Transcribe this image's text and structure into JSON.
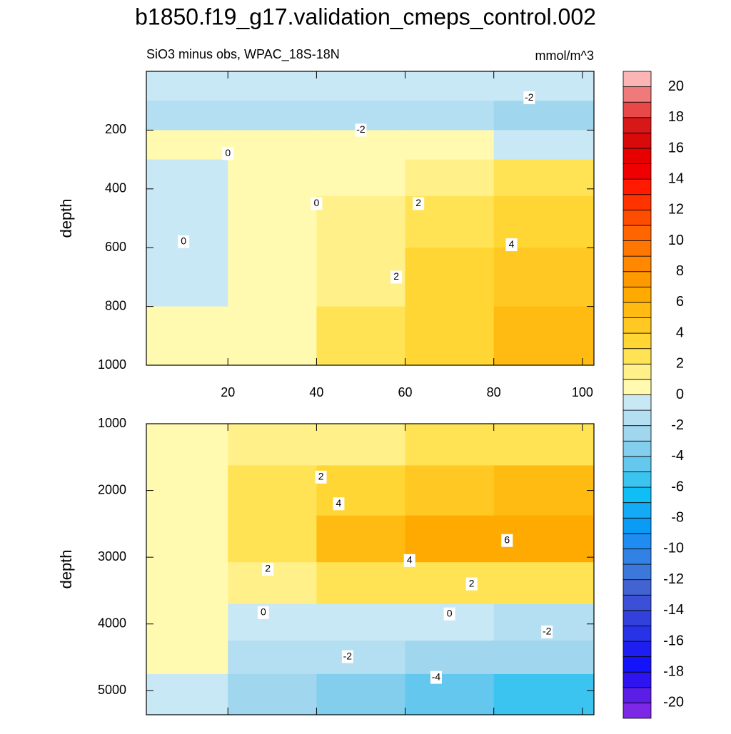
{
  "title": "b1850.f19_g17.validation_cmeps_control.002",
  "subtitle": "SiO3 minus obs, WPAC_18S-18N",
  "units": "mmol/m^3",
  "colorbar": {
    "levels": [
      -21,
      -20,
      -19,
      -18,
      -17,
      -16,
      -15,
      -14,
      -13,
      -12,
      -11,
      -10,
      -9,
      -8,
      -7,
      -6,
      -5,
      -4,
      -3,
      -2,
      -1,
      0,
      1,
      2,
      3,
      4,
      5,
      6,
      7,
      8,
      9,
      10,
      11,
      12,
      13,
      14,
      15,
      16,
      17,
      18,
      19,
      20,
      21
    ],
    "colors": [
      "#7d28e6",
      "#5a1ee6",
      "#2d14f0",
      "#1414fa",
      "#1e1ef0",
      "#2832e6",
      "#3241dc",
      "#3c50d7",
      "#4164d2",
      "#3c78dc",
      "#3282e6",
      "#1e8cf0",
      "#0a9bf5",
      "#14aaf5",
      "#0fbef5",
      "#3cc4f0",
      "#64c8ee",
      "#82ceec",
      "#a0d6ee",
      "#b4def2",
      "#c8e8f6",
      "#fffab0",
      "#fff08a",
      "#ffe355",
      "#ffd633",
      "#ffc822",
      "#ffbb11",
      "#ffaa00",
      "#ff9900",
      "#ff8800",
      "#ff7700",
      "#ff6600",
      "#ff4d00",
      "#ff3300",
      "#ff1a00",
      "#f00000",
      "#e60000",
      "#d80a0a",
      "#d81818",
      "#e84848",
      "#f07a7a",
      "#fbb5b5"
    ],
    "ticks": [
      -20,
      -18,
      -16,
      -14,
      -12,
      -10,
      -8,
      -6,
      -4,
      -2,
      0,
      2,
      4,
      6,
      8,
      10,
      12,
      14,
      16,
      18,
      20
    ]
  },
  "chart_data": [
    {
      "type": "contour",
      "ylabel": "depth",
      "xlim": [
        1.6,
        102.6
      ],
      "ylim": [
        0,
        1000
      ],
      "xticks": [
        20,
        40,
        60,
        80,
        100
      ],
      "xtick_labels": true,
      "yticks": [
        200,
        400,
        600,
        800,
        1000
      ],
      "x": [
        10,
        30,
        50,
        70,
        90
      ],
      "y": [
        50,
        150,
        250,
        350,
        500,
        700,
        900
      ],
      "z": [
        [
          -1,
          -1,
          -1,
          -1,
          -1
        ],
        [
          -2,
          -2,
          -2,
          -2,
          -3
        ],
        [
          0,
          0.5,
          0,
          0.5,
          -0.5
        ],
        [
          -0.5,
          0.5,
          0.5,
          1.5,
          2
        ],
        [
          -0.5,
          0.5,
          1,
          2.5,
          3
        ],
        [
          -0.5,
          0.5,
          1.5,
          3,
          4.5
        ],
        [
          0.5,
          0.5,
          2.5,
          3.5,
          5
        ]
      ],
      "contour_labels": [
        {
          "x": 88,
          "y": 90,
          "value": -2
        },
        {
          "x": 50,
          "y": 200,
          "value": -2
        },
        {
          "x": 20,
          "y": 280,
          "value": 0
        },
        {
          "x": 40,
          "y": 450,
          "value": 0
        },
        {
          "x": 63,
          "y": 450,
          "value": 2
        },
        {
          "x": 84,
          "y": 590,
          "value": 4
        },
        {
          "x": 10,
          "y": 580,
          "value": 0
        },
        {
          "x": 58,
          "y": 700,
          "value": 2
        }
      ]
    },
    {
      "type": "contour",
      "ylabel": "depth",
      "xlim": [
        1.6,
        102.6
      ],
      "ylim": [
        1000,
        5360
      ],
      "xticks": [
        20,
        40,
        60,
        80,
        100
      ],
      "xtick_labels": false,
      "yticks": [
        1000,
        2000,
        3000,
        4000,
        5000
      ],
      "x": [
        10,
        30,
        50,
        70,
        90
      ],
      "y": [
        1250,
        2000,
        2750,
        3400,
        4000,
        4500,
        5000
      ],
      "z": [
        [
          0.5,
          1,
          1.5,
          2,
          2.5
        ],
        [
          0.5,
          2,
          3.5,
          4.5,
          5
        ],
        [
          0.5,
          2.5,
          5,
          6,
          6.5
        ],
        [
          0.5,
          1.5,
          2,
          2,
          2
        ],
        [
          0.5,
          -0.5,
          -1,
          -1,
          -1.5
        ],
        [
          0.5,
          -1.5,
          -2,
          -2.5,
          -3
        ],
        [
          -1,
          -3,
          -4,
          -5,
          -5.5
        ]
      ],
      "contour_labels": [
        {
          "x": 41,
          "y": 1800,
          "value": 2
        },
        {
          "x": 45,
          "y": 2200,
          "value": 4
        },
        {
          "x": 83,
          "y": 2750,
          "value": 6
        },
        {
          "x": 61,
          "y": 3050,
          "value": 4
        },
        {
          "x": 29,
          "y": 3180,
          "value": 2
        },
        {
          "x": 75,
          "y": 3400,
          "value": 2
        },
        {
          "x": 28,
          "y": 3830,
          "value": 0
        },
        {
          "x": 70,
          "y": 3850,
          "value": 0
        },
        {
          "x": 47,
          "y": 4490,
          "value": -2
        },
        {
          "x": 92,
          "y": 4120,
          "value": -2
        },
        {
          "x": 67,
          "y": 4800,
          "value": -4
        }
      ]
    }
  ]
}
